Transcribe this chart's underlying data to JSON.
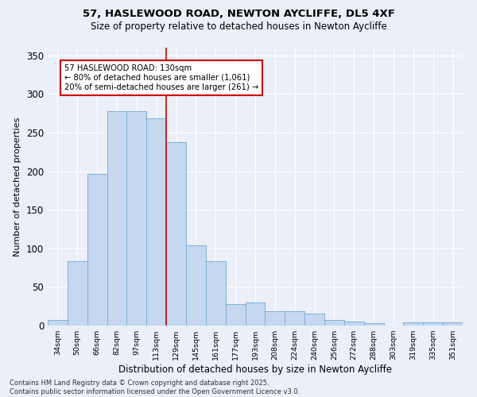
{
  "title": "57, HASLEWOOD ROAD, NEWTON AYCLIFFE, DL5 4XF",
  "subtitle": "Size of property relative to detached houses in Newton Aycliffe",
  "xlabel": "Distribution of detached houses by size in Newton Aycliffe",
  "ylabel": "Number of detached properties",
  "categories": [
    "34sqm",
    "50sqm",
    "66sqm",
    "82sqm",
    "97sqm",
    "113sqm",
    "129sqm",
    "145sqm",
    "161sqm",
    "177sqm",
    "193sqm",
    "208sqm",
    "224sqm",
    "240sqm",
    "256sqm",
    "272sqm",
    "288sqm",
    "303sqm",
    "319sqm",
    "335sqm",
    "351sqm"
  ],
  "values": [
    7,
    83,
    196,
    278,
    278,
    268,
    238,
    104,
    83,
    28,
    30,
    19,
    19,
    15,
    7,
    5,
    3,
    0,
    4,
    4,
    4
  ],
  "bar_color": "#c5d8f0",
  "bar_edge_color": "#7fafd4",
  "vline_x": 5.5,
  "vline_color": "#cc0000",
  "annotation_text": "57 HASLEWOOD ROAD: 130sqm\n← 80% of detached houses are smaller (1,061)\n20% of semi-detached houses are larger (261) →",
  "annotation_box_color": "#ffffff",
  "annotation_box_edge_color": "#cc0000",
  "ylim": [
    0,
    360
  ],
  "yticks": [
    0,
    50,
    100,
    150,
    200,
    250,
    300,
    350
  ],
  "background_color": "#eaeff8",
  "grid_color": "#ffffff",
  "title_fontsize": 9.5,
  "subtitle_fontsize": 8.5,
  "footer_line1": "Contains HM Land Registry data © Crown copyright and database right 2025.",
  "footer_line2": "Contains public sector information licensed under the Open Government Licence v3.0."
}
